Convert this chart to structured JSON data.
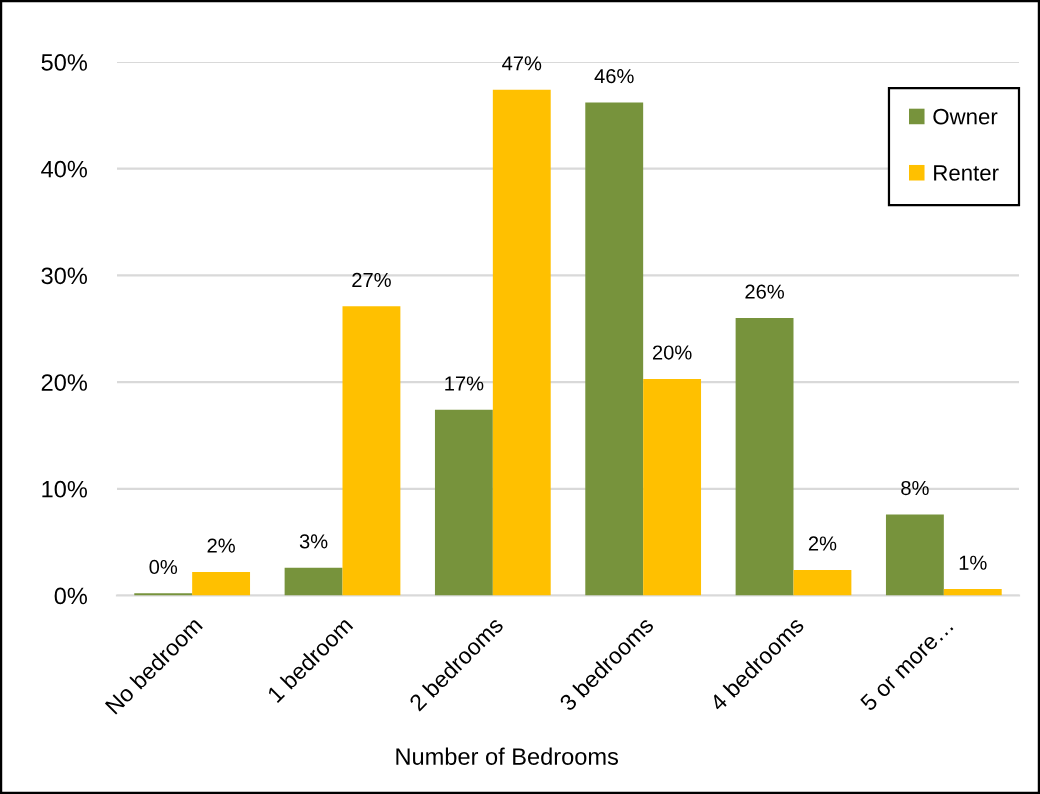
{
  "chart_data": {
    "type": "bar",
    "xlabel": "Number of Bedrooms",
    "categories": [
      "No bedroom",
      "1 bedroom",
      "2 bedrooms",
      "3 bedrooms",
      "4 bedrooms",
      "5 or more…"
    ],
    "series": [
      {
        "name": "Owner",
        "color": "#77933c",
        "values": [
          0.2,
          2.6,
          17.4,
          46.2,
          26.0,
          7.6
        ],
        "value_labels": [
          "0%",
          "3%",
          "17%",
          "46%",
          "26%",
          "8%"
        ]
      },
      {
        "name": "Renter",
        "color": "#ffc000",
        "values": [
          2.2,
          27.1,
          47.4,
          20.3,
          2.4,
          0.6
        ],
        "value_labels": [
          "2%",
          "27%",
          "47%",
          "20%",
          "2%",
          "1%"
        ]
      }
    ],
    "ylim": [
      0,
      50
    ],
    "yticks": [
      {
        "value": 0,
        "label": "0%"
      },
      {
        "value": 10,
        "label": "10%"
      },
      {
        "value": 20,
        "label": "20%"
      },
      {
        "value": 30,
        "label": "30%"
      },
      {
        "value": 40,
        "label": "40%"
      },
      {
        "value": 50,
        "label": "50%"
      }
    ],
    "grid": "y",
    "legend": "top right"
  }
}
